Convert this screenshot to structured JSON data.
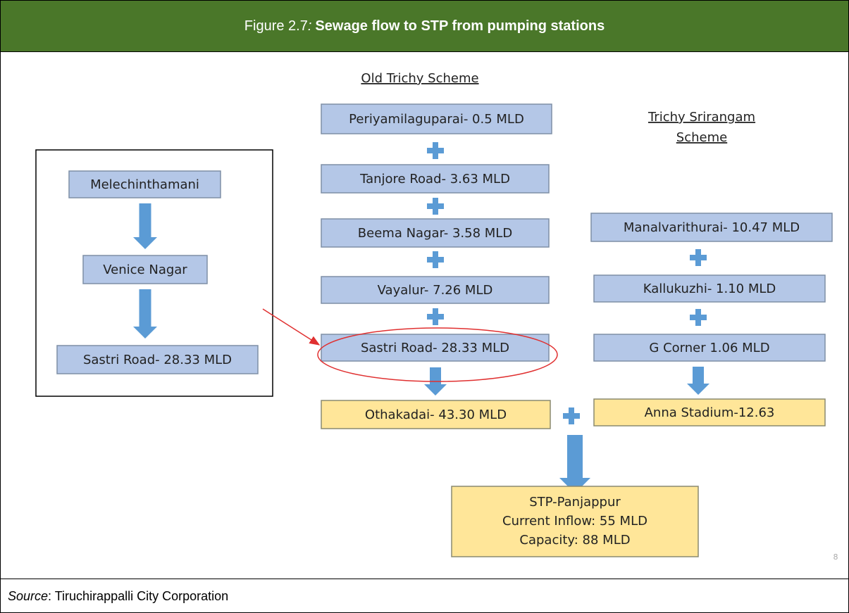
{
  "header": {
    "label": "Figure 2.7",
    "sep": ":",
    "title": "Sewage flow to STP from pumping stations"
  },
  "titles": {
    "old": "Old Trichy Scheme",
    "srirangam": [
      "Trichy Srirangam",
      "Scheme"
    ]
  },
  "nodes": [
    "Melechinthamani",
    "Venice Nagar",
    "Sastri Road- 28.33 MLD",
    "Periyamilaguparai- 0.5 MLD",
    "Tanjore Road- 3.63 MLD",
    "Beema Nagar- 3.58 MLD",
    "Vayalur- 7.26 MLD",
    "Sastri Road- 28.33 MLD",
    "Othakadai- 43.30 MLD",
    "Manalvarithurai- 10.47 MLD",
    "Kallukuzhi- 1.10 MLD",
    "G Corner 1.06 MLD",
    "Anna Stadium-12.63"
  ],
  "stp": [
    "STP-Panjappur",
    "Current Inflow: 55 MLD",
    "Capacity: 88 MLD"
  ],
  "page_number": "8",
  "footer": {
    "label": "Source",
    "text": ": Tiruchirappalli City Corporation"
  }
}
